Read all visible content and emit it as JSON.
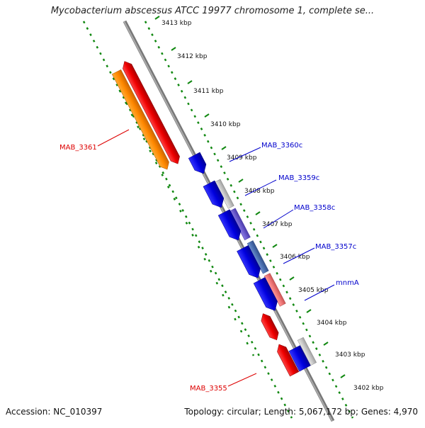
{
  "map": {
    "title": "Mycobacterium abscessus ATCC 19977 chromosome 1, complete se...",
    "accession": "Accession: NC_010397",
    "summary": "Topology: circular; Length: 5,067,172 bp; Genes: 4,970"
  },
  "ticks": [
    {
      "label": "3413 kbp"
    },
    {
      "label": "3412 kbp"
    },
    {
      "label": "3411 kbp"
    },
    {
      "label": "3410 kbp"
    },
    {
      "label": "3409 kbp"
    },
    {
      "label": "3408 kbp"
    },
    {
      "label": "3407 kbp"
    },
    {
      "label": "3406 kbp"
    },
    {
      "label": "3405 kbp"
    },
    {
      "label": "3404 kbp"
    },
    {
      "label": "3403 kbp"
    },
    {
      "label": "3402 kbp"
    }
  ],
  "gene_labels": [
    {
      "label": "MAB_3361",
      "color": "#dd0000"
    },
    {
      "label": "MAB_3360c",
      "color": "#0000cc"
    },
    {
      "label": "MAB_3359c",
      "color": "#0000cc"
    },
    {
      "label": "MAB_3358c",
      "color": "#0000cc"
    },
    {
      "label": "MAB_3357c",
      "color": "#0000cc"
    },
    {
      "label": "mnmA",
      "color": "#0000cc"
    },
    {
      "label": "MAB_3355",
      "color": "#dd0000"
    }
  ],
  "colors": {
    "backbone": "#888888",
    "dotted_track": "#118811",
    "forward_cds": "#ee0000",
    "reverse_cds": "#0000dd",
    "orange_feature": "#ff8800",
    "cyan_feature": "#00dddd",
    "grey_feature": "#c8c8c8",
    "slate_feature": "#4a6fb0",
    "purple_feature": "#6a5acd",
    "pink_feature": "#ee7777"
  }
}
